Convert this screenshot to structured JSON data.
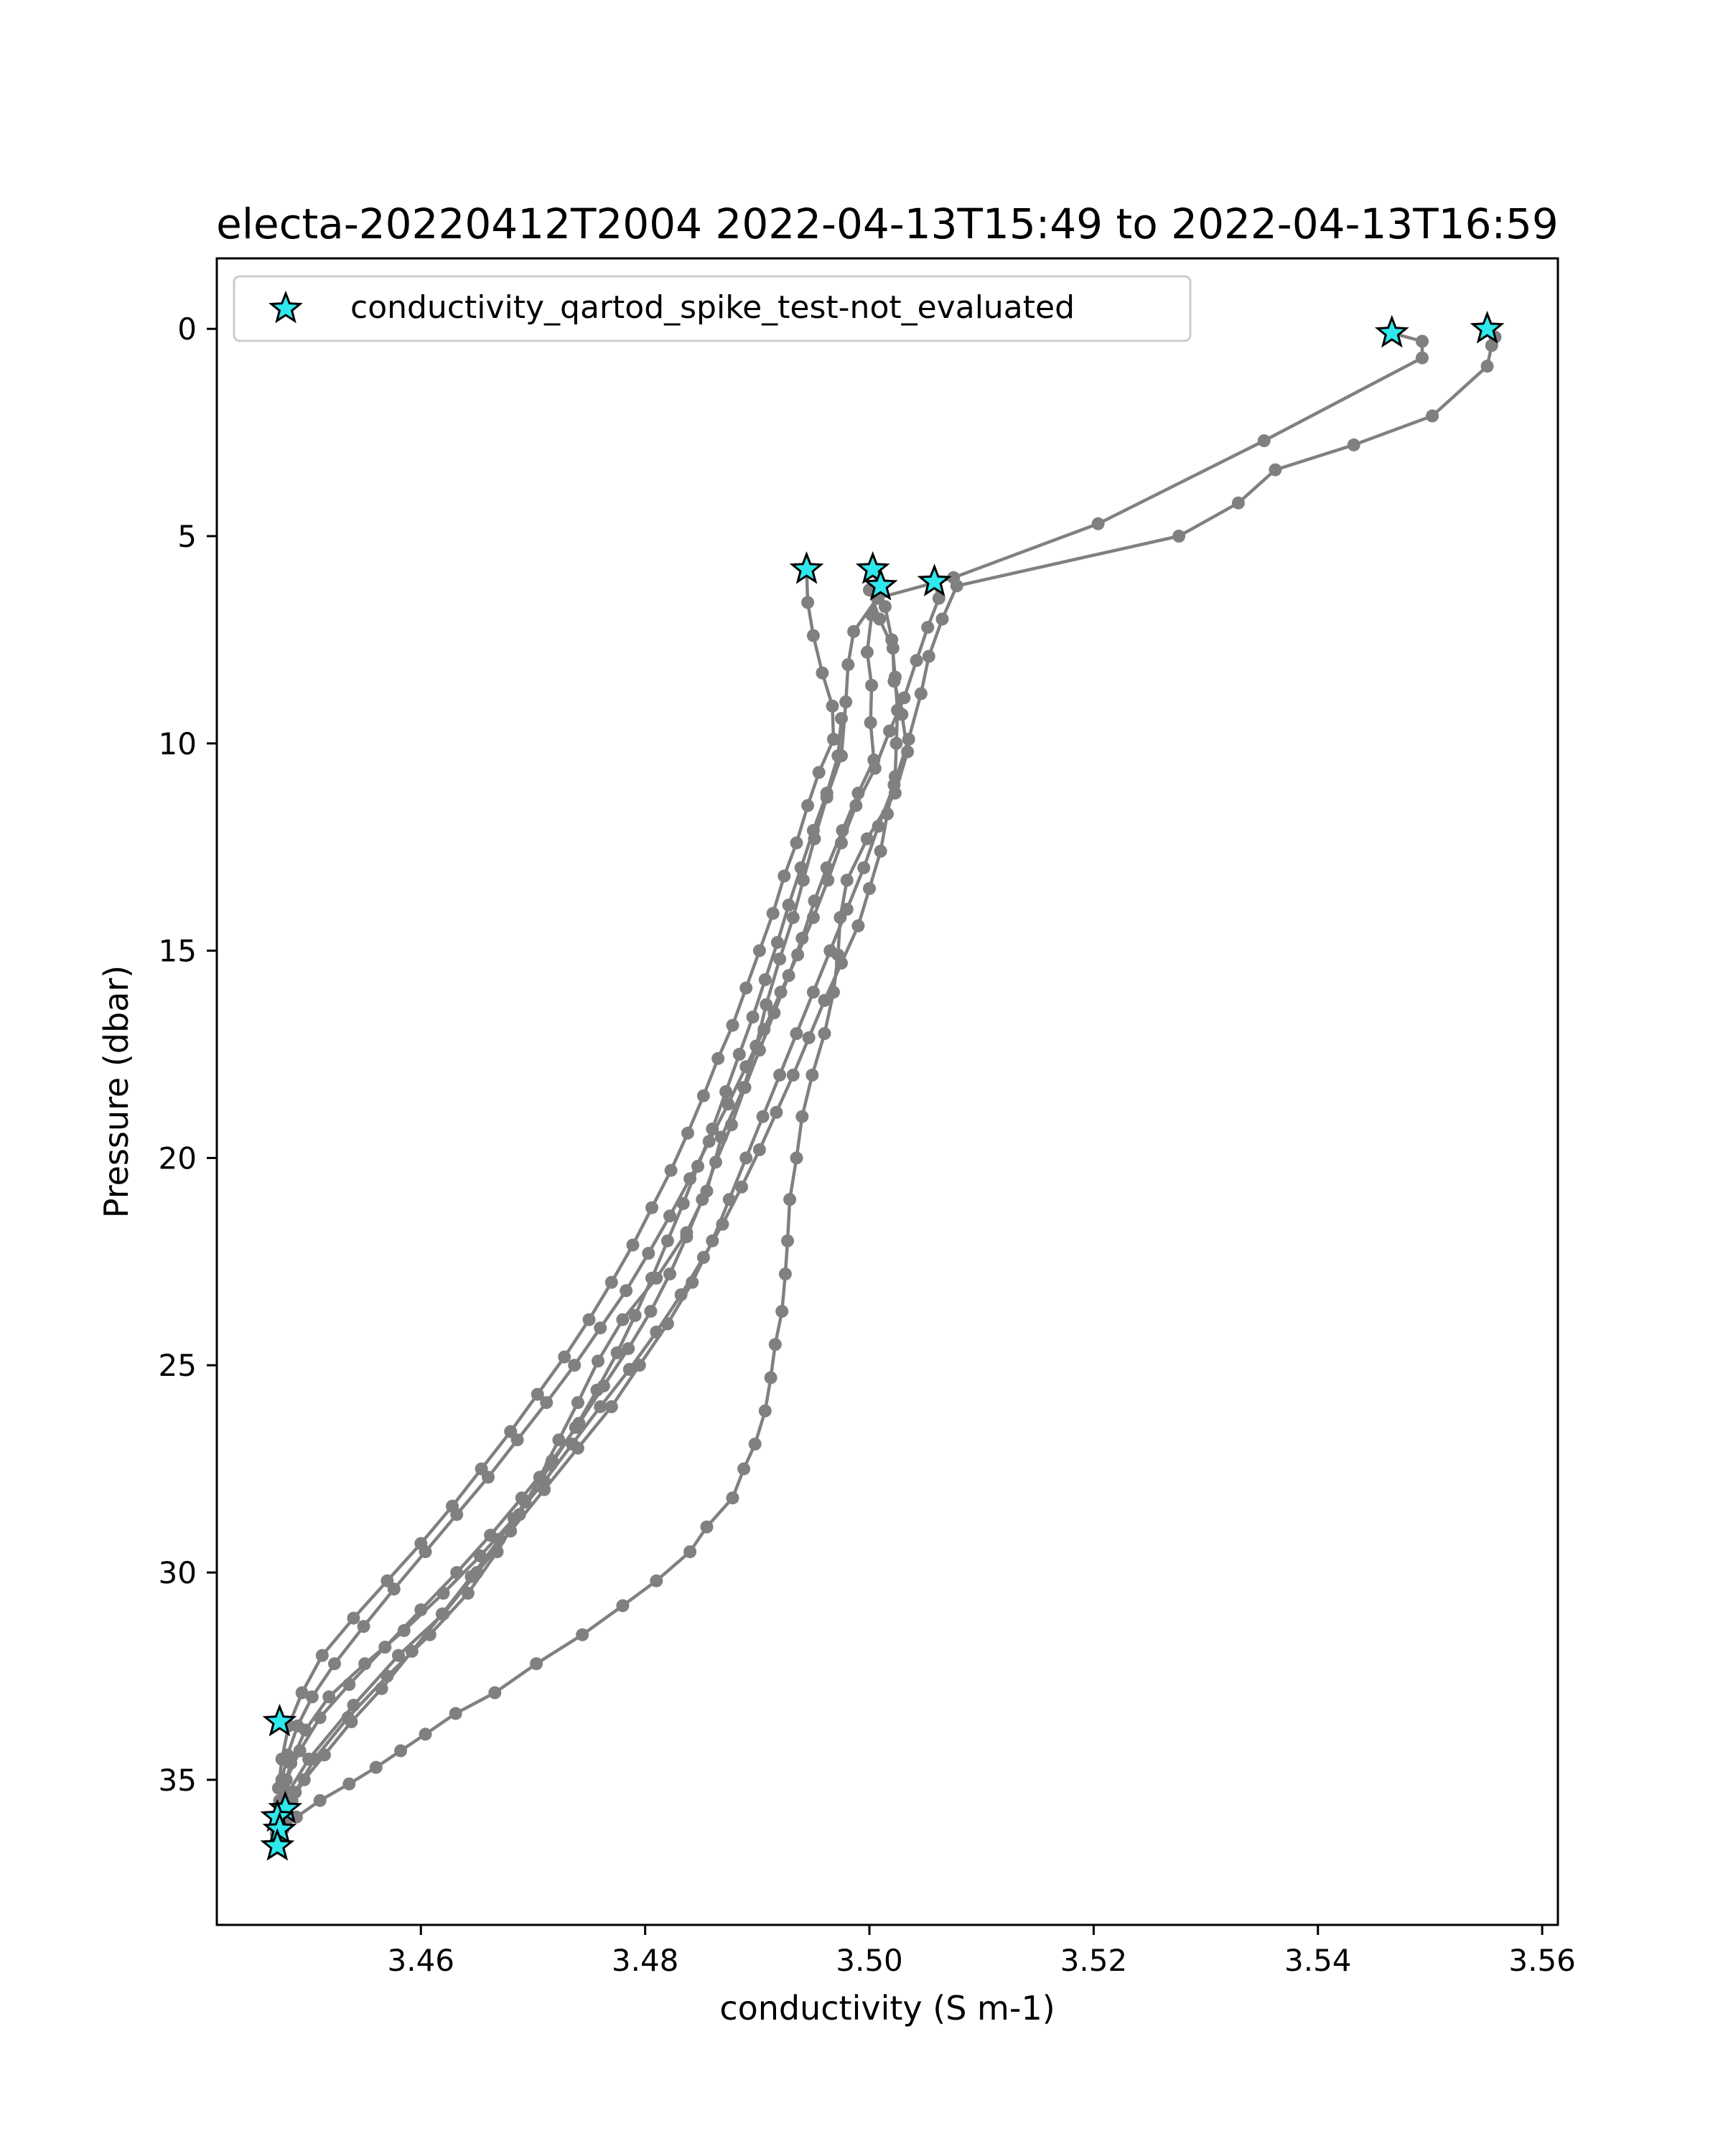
{
  "chart_data": {
    "type": "line",
    "title": "electa-20220412T2004 2022-04-13T15:49 to 2022-04-13T16:59",
    "xlabel": "conductivity (S m-1)",
    "ylabel": "Pressure (dbar)",
    "xlim": [
      3.4418,
      3.5614
    ],
    "ylim": [
      38.5,
      -1.7
    ],
    "y_inverted": true,
    "grid": false,
    "legend_position": "upper-left",
    "x_ticks": [
      "3.46",
      "3.48",
      "3.50",
      "3.52",
      "3.54",
      "3.56"
    ],
    "y_ticks": [
      "0",
      "5",
      "10",
      "15",
      "20",
      "25",
      "30",
      "35"
    ],
    "x_tick_values": [
      3.46,
      3.48,
      3.5,
      3.52,
      3.54,
      3.56
    ],
    "y_tick_values": [
      0,
      5,
      10,
      15,
      20,
      25,
      30,
      35
    ],
    "colors": {
      "line": "#808080",
      "marker_fill": "#2ee8ee",
      "marker_edge": "#000000"
    },
    "legend": [
      {
        "label": "conductivity_qartod_spike_test-not_evaluated",
        "marker": "star",
        "color": "#2ee8ee"
      }
    ],
    "series": [
      {
        "x": [
          3.5466,
          3.5493,
          3.5493,
          3.5352,
          3.5204,
          3.5075,
          3.5007,
          3.4986,
          3.4981,
          3.4979,
          3.4975,
          3.4962,
          3.4951,
          3.4941,
          3.4932,
          3.492,
          3.4908,
          3.4899,
          3.4888,
          3.4868,
          3.4855,
          3.4837,
          3.481,
          3.478,
          3.4758,
          3.474,
          3.4723,
          3.4706,
          3.4688,
          3.4668,
          3.4642,
          3.4608,
          3.457,
          3.4535,
          3.4505,
          3.4488,
          3.4476,
          3.4471
        ],
        "y": [
          0.1,
          0.3,
          0.7,
          2.7,
          4.7,
          6.0,
          6.5,
          7.3,
          8.1,
          9.0,
          10.3,
          11.3,
          12.3,
          13.3,
          14.2,
          15.2,
          16.3,
          17.3,
          18.3,
          19.5,
          20.8,
          21.8,
          22.9,
          23.9,
          24.9,
          25.9,
          26.8,
          27.7,
          28.6,
          29.5,
          30.5,
          31.5,
          32.5,
          33.5,
          34.5,
          35.3,
          35.8,
          36.3
        ]
      },
      {
        "x": [
          3.5551,
          3.5558,
          3.5555,
          3.5551,
          3.5502,
          3.5432,
          3.5362,
          3.5329,
          3.5276,
          3.5078,
          3.5065,
          3.5053,
          3.5046,
          3.5035,
          3.5022,
          3.5008,
          3.4995,
          3.498,
          3.4965,
          3.495,
          3.4935,
          3.492,
          3.4905,
          3.489,
          3.4875,
          3.486,
          3.4842,
          3.482,
          3.4795,
          3.477,
          3.474,
          3.471,
          3.468,
          3.465,
          3.462,
          3.458,
          3.454,
          3.45,
          3.4475
        ],
        "y": [
          0.0,
          0.2,
          0.4,
          0.9,
          2.1,
          2.8,
          3.4,
          4.2,
          5.0,
          6.2,
          7.0,
          7.9,
          8.8,
          9.9,
          11.0,
          12.0,
          13.0,
          14.0,
          15.0,
          16.0,
          17.0,
          18.0,
          19.0,
          20.0,
          21.0,
          22.0,
          23.0,
          24.0,
          25.0,
          26.0,
          27.0,
          28.0,
          29.0,
          30.0,
          31.0,
          32.0,
          33.2,
          34.5,
          35.6
        ]
      },
      {
        "x": [
          3.5003,
          3.5014,
          3.502,
          3.5023,
          3.5025,
          3.5024,
          3.5023,
          3.5016,
          3.501,
          3.5,
          3.499,
          3.4975,
          3.496,
          3.4946,
          3.4932,
          3.4917,
          3.4902,
          3.4886,
          3.4869,
          3.4852,
          3.4832,
          3.481,
          3.4786,
          3.476,
          3.4735,
          3.471,
          3.4683,
          3.4653,
          3.462,
          3.4585,
          3.455,
          3.4518,
          3.4497,
          3.4484,
          3.4478,
          3.4475,
          3.4474
        ],
        "y": [
          5.8,
          6.7,
          7.5,
          8.4,
          9.2,
          10.0,
          10.8,
          11.7,
          12.6,
          13.5,
          14.4,
          15.3,
          16.2,
          17.1,
          18.0,
          18.9,
          19.8,
          20.7,
          21.6,
          22.4,
          23.3,
          24.2,
          25.1,
          26.0,
          26.9,
          27.8,
          28.7,
          29.6,
          30.5,
          31.4,
          32.2,
          33.0,
          33.8,
          34.6,
          35.2,
          35.7,
          36.1
        ]
      },
      {
        "x": [
          3.501,
          3.5002,
          3.4998,
          3.5002,
          3.5001,
          3.5004,
          3.499,
          3.4976,
          3.4962,
          3.4951,
          3.494,
          3.4928,
          3.4915,
          3.4902,
          3.4889,
          3.4877,
          3.4863,
          3.4851,
          3.4837,
          3.4822,
          3.4805,
          3.4785,
          3.4763,
          3.4741,
          3.4717,
          3.469,
          3.4662,
          3.4632,
          3.46,
          3.4568,
          3.4536,
          3.451,
          3.4492,
          3.448,
          3.4475,
          3.4473,
          3.4472
        ],
        "y": [
          6.2,
          6.9,
          7.8,
          8.6,
          9.5,
          10.4,
          11.2,
          12.1,
          13.0,
          13.8,
          14.7,
          15.6,
          16.5,
          17.4,
          18.3,
          19.2,
          20.1,
          21.0,
          21.9,
          22.8,
          23.7,
          24.6,
          25.5,
          26.4,
          27.3,
          28.2,
          29.1,
          30.0,
          30.9,
          31.8,
          32.7,
          33.5,
          34.3,
          35.0,
          35.6,
          36.1,
          36.6
        ]
      },
      {
        "x": [
          3.4944,
          3.4945,
          3.495,
          3.4958,
          3.4967,
          3.4968,
          3.4955,
          3.4945,
          3.4935,
          3.4924,
          3.4914,
          3.4902,
          3.489,
          3.4878,
          3.4865,
          3.4852,
          3.4838,
          3.4823,
          3.4806,
          3.4789,
          3.477,
          3.475,
          3.4728,
          3.4704,
          3.468,
          3.4654,
          3.4628,
          3.46,
          3.457,
          3.454,
          3.4512,
          3.4494,
          3.4482,
          3.4476,
          3.4473
        ],
        "y": [
          5.8,
          6.6,
          7.4,
          8.3,
          9.1,
          9.9,
          10.7,
          11.5,
          12.4,
          13.2,
          14.1,
          15.0,
          15.9,
          16.8,
          17.6,
          18.5,
          19.4,
          20.3,
          21.2,
          22.1,
          23.0,
          23.9,
          24.8,
          25.7,
          26.6,
          27.5,
          28.4,
          29.3,
          30.2,
          31.1,
          32.0,
          32.9,
          33.7,
          34.5,
          35.2
        ]
      },
      {
        "x": [
          3.5058,
          3.5062,
          3.5052,
          3.5042,
          3.5031,
          3.5018,
          3.5005,
          3.4988,
          3.4975,
          3.4963,
          3.495,
          3.4936,
          3.4921,
          3.4906,
          3.489,
          3.4874,
          3.4857,
          3.484,
          3.4822,
          3.4803,
          3.4783,
          3.476,
          3.4737,
          3.4712,
          3.4686,
          3.466,
          3.4632,
          3.4604,
          3.4576,
          3.4549,
          3.4523,
          3.4503,
          3.449,
          3.4481,
          3.4476,
          3.4474
        ],
        "y": [
          6.1,
          6.5,
          7.2,
          8.0,
          8.9,
          9.7,
          10.6,
          11.5,
          12.4,
          13.3,
          14.2,
          15.1,
          16.0,
          16.9,
          17.8,
          18.7,
          19.6,
          20.5,
          21.4,
          22.3,
          23.2,
          24.1,
          25.0,
          25.9,
          26.8,
          27.7,
          28.6,
          29.5,
          30.4,
          31.3,
          32.2,
          33.0,
          33.7,
          34.4,
          35.0,
          35.5
        ]
      },
      {
        "x": [
          3.4975,
          3.4972,
          3.4962,
          3.495,
          3.4939,
          3.4928,
          3.4918,
          3.4907,
          3.4896,
          3.4884,
          3.4872,
          3.486,
          3.4847,
          3.4834,
          3.482,
          3.4806,
          3.4791,
          3.4775,
          3.4757,
          3.4738,
          3.4716,
          3.4693,
          3.467,
          3.4645,
          3.4619,
          3.4592,
          3.4565,
          3.4538,
          3.4514,
          3.4496,
          3.4485,
          3.4479,
          3.4476,
          3.4474
        ],
        "y": [
          9.4,
          10.3,
          11.2,
          12.1,
          13.0,
          13.9,
          14.8,
          15.7,
          16.6,
          17.5,
          18.4,
          19.3,
          20.2,
          21.1,
          22.0,
          22.9,
          23.8,
          24.7,
          25.6,
          26.5,
          27.4,
          28.3,
          29.2,
          30.1,
          31.0,
          31.9,
          32.8,
          33.6,
          34.4,
          35.0,
          35.5,
          35.9,
          36.2,
          36.4
        ]
      },
      {
        "x": [
          3.5,
          3.5009,
          3.5021,
          3.5022,
          3.5029,
          3.5034,
          3.5023,
          3.4998,
          3.498,
          3.4974,
          3.4972,
          3.4968,
          3.496,
          3.4949,
          3.494,
          3.4935,
          3.4929,
          3.4927,
          3.4925,
          3.4922,
          3.4916,
          3.4912,
          3.4907,
          3.4898,
          3.4888,
          3.4878,
          3.4855,
          3.484,
          3.481,
          3.478,
          3.4744,
          3.4703,
          3.4666,
          3.4631,
          3.4604,
          3.4582,
          3.456,
          3.4536,
          3.451,
          3.4489,
          3.4477
        ],
        "y": [
          6.3,
          7.0,
          7.7,
          8.5,
          9.3,
          10.2,
          11.2,
          12.3,
          13.3,
          14.2,
          15.1,
          16.0,
          17.0,
          18.0,
          19.0,
          20.0,
          21.0,
          22.0,
          22.8,
          23.7,
          24.5,
          25.3,
          26.1,
          26.9,
          27.5,
          28.2,
          28.9,
          29.5,
          30.2,
          30.8,
          31.5,
          32.2,
          32.9,
          33.4,
          33.9,
          34.3,
          34.7,
          35.1,
          35.5,
          35.9,
          36.2
        ]
      }
    ],
    "flagged_points": [
      {
        "x": 3.5466,
        "y": 0.1
      },
      {
        "x": 3.5551,
        "y": 0.0
      },
      {
        "x": 3.4944,
        "y": 5.8
      },
      {
        "x": 3.5003,
        "y": 5.8
      },
      {
        "x": 3.501,
        "y": 6.2
      },
      {
        "x": 3.5058,
        "y": 6.1
      },
      {
        "x": 3.4474,
        "y": 33.6
      },
      {
        "x": 3.4479,
        "y": 35.7
      },
      {
        "x": 3.4472,
        "y": 35.9
      },
      {
        "x": 3.4474,
        "y": 36.2
      },
      {
        "x": 3.4472,
        "y": 36.6
      }
    ]
  }
}
